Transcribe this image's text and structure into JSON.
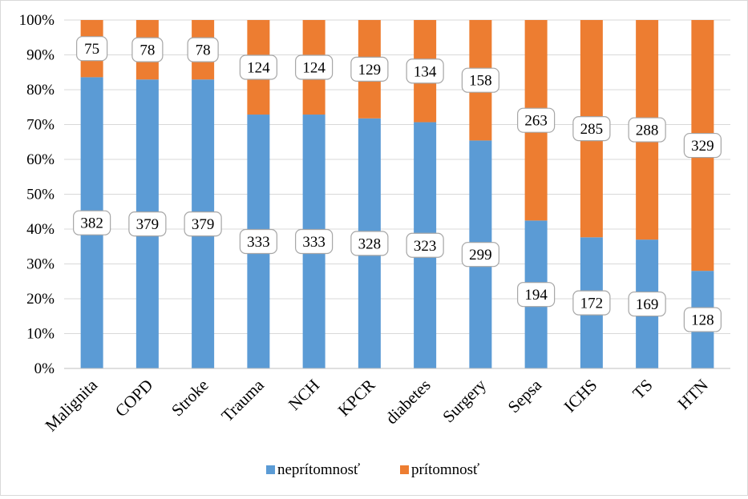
{
  "chart_data": {
    "type": "bar",
    "stacked": "percent",
    "categories": [
      "Malignita",
      "COPD",
      "Stroke",
      "Trauma",
      "NCH",
      "KPCR",
      "diabetes",
      "Surgery",
      "Sepsa",
      "ICHS",
      "TS",
      "HTN"
    ],
    "series": [
      {
        "name": "neprítomnosť",
        "color": "#5b9bd5",
        "values": [
          382,
          379,
          379,
          333,
          333,
          328,
          323,
          299,
          194,
          172,
          169,
          128
        ]
      },
      {
        "name": "prítomnosť",
        "color": "#ed7d31",
        "values": [
          75,
          78,
          78,
          124,
          124,
          129,
          134,
          158,
          263,
          285,
          288,
          329
        ]
      }
    ],
    "y_ticks": [
      "0%",
      "10%",
      "20%",
      "30%",
      "40%",
      "50%",
      "60%",
      "70%",
      "80%",
      "90%",
      "100%"
    ],
    "ylim": [
      0,
      100
    ],
    "grid": true,
    "legend_position": "bottom",
    "data_labels": "boxed"
  }
}
